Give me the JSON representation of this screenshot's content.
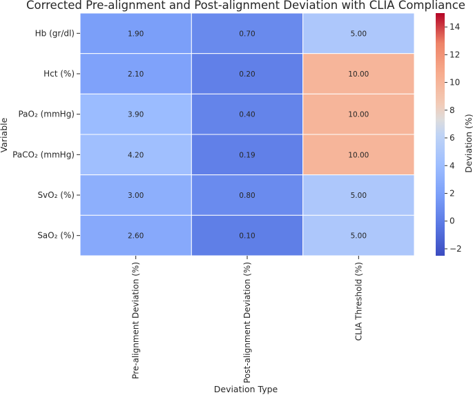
{
  "chart_data": {
    "type": "heatmap",
    "title": "Corrected Pre-alignment and Post-alignment Deviation with CLIA Compliance",
    "xlabel": "Deviation Type",
    "ylabel": "Variable",
    "columns": [
      "Pre-alignment Deviation (%)",
      "Post-alignment Deviation (%)",
      "CLIA Threshold (%)"
    ],
    "rows": [
      "Hb (gr/dl)",
      "Hct (%)",
      "PaO₂ (mmHg)",
      "PaCO₂ (mmHg)",
      "SvO₂ (%)",
      "SaO₂ (%)"
    ],
    "values": [
      [
        1.9,
        0.7,
        5.0
      ],
      [
        2.1,
        0.2,
        10.0
      ],
      [
        3.9,
        0.4,
        10.0
      ],
      [
        4.2,
        0.19,
        10.0
      ],
      [
        3.0,
        0.8,
        5.0
      ],
      [
        2.6,
        0.1,
        5.0
      ]
    ],
    "cell_labels": [
      [
        "1.90",
        "0.70",
        "5.00"
      ],
      [
        "2.10",
        "0.20",
        "10.00"
      ],
      [
        "3.90",
        "0.40",
        "10.00"
      ],
      [
        "4.20",
        "0.19",
        "10.00"
      ],
      [
        "3.00",
        "0.80",
        "5.00"
      ],
      [
        "2.60",
        "0.10",
        "5.00"
      ]
    ],
    "colormap": "coolwarm",
    "color_range": [
      -2.5,
      15
    ],
    "colorbar": {
      "label": "Deviation (%)",
      "ticks": [
        -2,
        0,
        2,
        4,
        6,
        8,
        10,
        12,
        14
      ],
      "tick_labels": [
        "−2",
        "0",
        "2",
        "4",
        "6",
        "8",
        "10",
        "12",
        "14"
      ]
    }
  }
}
